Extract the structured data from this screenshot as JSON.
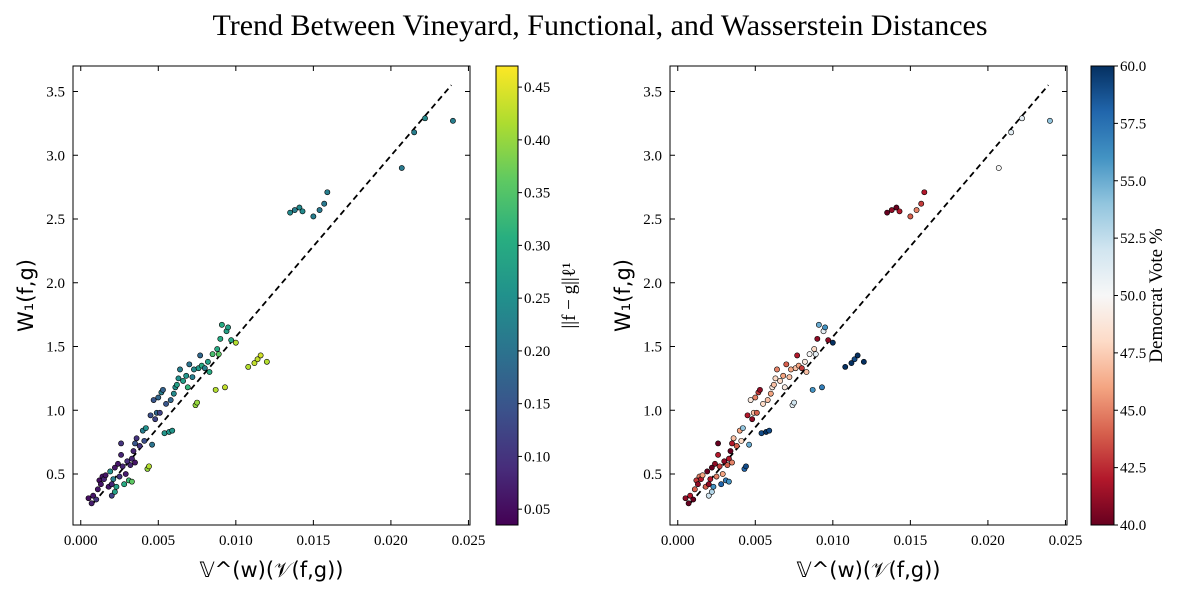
{
  "figure": {
    "title": "Trend Between Vineyard, Functional, and Wasserstein Distances"
  },
  "chart_data": [
    {
      "type": "scatter",
      "xlabel": "𝕍^(w)(𝒱(f,g))",
      "ylabel": "W₁(f,g)",
      "xlim": [
        -0.0005,
        0.0251
      ],
      "ylim": [
        0.1,
        3.7
      ],
      "xticks": [
        "0.000",
        "0.005",
        "0.010",
        "0.015",
        "0.020",
        "0.025"
      ],
      "yticks": [
        "0.5",
        "1.0",
        "1.5",
        "2.0",
        "2.5",
        "3.0",
        "3.5"
      ],
      "trend_line": {
        "x": [
          0.0008,
          0.0239
        ],
        "y": [
          0.27,
          3.55
        ],
        "style": "dashed",
        "color": "#000000"
      },
      "colorbar": {
        "label": "||f − g||ℓ¹",
        "colormap": "viridis",
        "range": [
          0.035,
          0.47
        ],
        "ticks": [
          "0.05",
          "0.10",
          "0.15",
          "0.20",
          "0.25",
          "0.30",
          "0.35",
          "0.40",
          "0.45"
        ]
      },
      "columns": [
        "x",
        "y",
        "color_value"
      ],
      "points": [
        [
          0.0005,
          0.31,
          0.05
        ],
        [
          0.0007,
          0.27,
          0.07
        ],
        [
          0.0008,
          0.33,
          0.06
        ],
        [
          0.001,
          0.3,
          0.1
        ],
        [
          0.0011,
          0.38,
          0.06
        ],
        [
          0.0012,
          0.45,
          0.05
        ],
        [
          0.0013,
          0.42,
          0.06
        ],
        [
          0.0014,
          0.48,
          0.06
        ],
        [
          0.0015,
          0.46,
          0.08
        ],
        [
          0.0016,
          0.49,
          0.06
        ],
        [
          0.0018,
          0.4,
          0.06
        ],
        [
          0.0019,
          0.52,
          0.25
        ],
        [
          0.002,
          0.42,
          0.08
        ],
        [
          0.002,
          0.33,
          0.12
        ],
        [
          0.0021,
          0.46,
          0.22
        ],
        [
          0.0022,
          0.55,
          0.06
        ],
        [
          0.0022,
          0.36,
          0.28
        ],
        [
          0.0023,
          0.4,
          0.28
        ],
        [
          0.0024,
          0.58,
          0.06
        ],
        [
          0.0025,
          0.48,
          0.1
        ],
        [
          0.0026,
          0.65,
          0.08
        ],
        [
          0.0026,
          0.74,
          0.1
        ],
        [
          0.0027,
          0.56,
          0.08
        ],
        [
          0.0028,
          0.42,
          0.3
        ],
        [
          0.0029,
          0.5,
          0.07
        ],
        [
          0.003,
          0.6,
          0.09
        ],
        [
          0.0031,
          0.45,
          0.33
        ],
        [
          0.0032,
          0.57,
          0.08
        ],
        [
          0.0033,
          0.62,
          0.08
        ],
        [
          0.0033,
          0.44,
          0.36
        ],
        [
          0.0034,
          0.68,
          0.08
        ],
        [
          0.0035,
          0.74,
          0.15
        ],
        [
          0.0035,
          0.59,
          0.06
        ],
        [
          0.0036,
          0.78,
          0.1
        ],
        [
          0.0038,
          0.72,
          0.1
        ],
        [
          0.004,
          0.84,
          0.22
        ],
        [
          0.0041,
          0.76,
          0.14
        ],
        [
          0.0042,
          0.86,
          0.25
        ],
        [
          0.0043,
          0.54,
          0.4
        ],
        [
          0.0044,
          0.56,
          0.42
        ],
        [
          0.0045,
          0.96,
          0.14
        ],
        [
          0.0046,
          0.73,
          0.2
        ],
        [
          0.0047,
          1.08,
          0.15
        ],
        [
          0.0048,
          0.93,
          0.12
        ],
        [
          0.0049,
          0.98,
          0.18
        ],
        [
          0.005,
          1.1,
          0.18
        ],
        [
          0.0051,
          0.98,
          0.12
        ],
        [
          0.0052,
          1.14,
          0.22
        ],
        [
          0.0053,
          1.16,
          0.17
        ],
        [
          0.0054,
          0.82,
          0.26
        ],
        [
          0.0055,
          1.05,
          0.15
        ],
        [
          0.0057,
          0.83,
          0.26
        ],
        [
          0.0058,
          1.08,
          0.18
        ],
        [
          0.0059,
          0.84,
          0.26
        ],
        [
          0.006,
          1.13,
          0.24
        ],
        [
          0.0061,
          1.18,
          0.25
        ],
        [
          0.0062,
          1.2,
          0.28
        ],
        [
          0.0063,
          1.25,
          0.25
        ],
        [
          0.0064,
          1.32,
          0.22
        ],
        [
          0.0066,
          1.23,
          0.28
        ],
        [
          0.0068,
          1.27,
          0.26
        ],
        [
          0.0069,
          1.18,
          0.32
        ],
        [
          0.007,
          1.36,
          0.2
        ],
        [
          0.0072,
          1.26,
          0.22
        ],
        [
          0.0073,
          1.32,
          0.24
        ],
        [
          0.0074,
          1.04,
          0.4
        ],
        [
          0.0075,
          1.06,
          0.4
        ],
        [
          0.0076,
          1.33,
          0.27
        ],
        [
          0.0077,
          1.43,
          0.18
        ],
        [
          0.0078,
          1.35,
          0.3
        ],
        [
          0.008,
          1.33,
          0.22
        ],
        [
          0.0082,
          1.38,
          0.28
        ],
        [
          0.0083,
          1.3,
          0.3
        ],
        [
          0.0085,
          1.44,
          0.34
        ],
        [
          0.0087,
          1.16,
          0.42
        ],
        [
          0.0088,
          1.48,
          0.3
        ],
        [
          0.0089,
          1.44,
          0.36
        ],
        [
          0.009,
          1.56,
          0.3
        ],
        [
          0.0091,
          1.67,
          0.3
        ],
        [
          0.0093,
          1.18,
          0.43
        ],
        [
          0.0094,
          1.62,
          0.28
        ],
        [
          0.0095,
          1.65,
          0.28
        ],
        [
          0.0097,
          1.55,
          0.3
        ],
        [
          0.01,
          1.53,
          0.42
        ],
        [
          0.0108,
          1.34,
          0.42
        ],
        [
          0.0112,
          1.37,
          0.43
        ],
        [
          0.0114,
          1.4,
          0.43
        ],
        [
          0.0116,
          1.43,
          0.44
        ],
        [
          0.012,
          1.38,
          0.42
        ],
        [
          0.0135,
          2.55,
          0.24
        ],
        [
          0.0138,
          2.57,
          0.22
        ],
        [
          0.0141,
          2.59,
          0.24
        ],
        [
          0.0143,
          2.56,
          0.24
        ],
        [
          0.015,
          2.52,
          0.22
        ],
        [
          0.0154,
          2.57,
          0.21
        ],
        [
          0.0157,
          2.62,
          0.21
        ],
        [
          0.0159,
          2.71,
          0.22
        ],
        [
          0.0207,
          2.9,
          0.21
        ],
        [
          0.0215,
          3.18,
          0.22
        ],
        [
          0.0222,
          3.29,
          0.24
        ],
        [
          0.024,
          3.27,
          0.22
        ]
      ]
    },
    {
      "type": "scatter",
      "xlabel": "𝕍^(w)(𝒱(f,g))",
      "ylabel": "W₁(f,g)",
      "xlim": [
        -0.0005,
        0.0251
      ],
      "ylim": [
        0.1,
        3.7
      ],
      "xticks": [
        "0.000",
        "0.005",
        "0.010",
        "0.015",
        "0.020",
        "0.025"
      ],
      "yticks": [
        "0.5",
        "1.0",
        "1.5",
        "2.0",
        "2.5",
        "3.0",
        "3.5"
      ],
      "trend_line": {
        "x": [
          0.0008,
          0.0239
        ],
        "y": [
          0.27,
          3.55
        ],
        "style": "dashed",
        "color": "#000000"
      },
      "colorbar": {
        "label": "Democrat Vote %",
        "colormap": "RdBu",
        "range": [
          40.0,
          60.0
        ],
        "ticks": [
          "40.0",
          "42.5",
          "45.0",
          "47.5",
          "50.0",
          "52.5",
          "55.0",
          "57.5",
          "60.0"
        ]
      },
      "columns": [
        "x",
        "y",
        "color_value"
      ],
      "points": [
        [
          0.0005,
          0.31,
          41
        ],
        [
          0.0007,
          0.27,
          40
        ],
        [
          0.0008,
          0.33,
          42
        ],
        [
          0.001,
          0.3,
          40
        ],
        [
          0.0011,
          0.38,
          44
        ],
        [
          0.0012,
          0.45,
          43
        ],
        [
          0.0013,
          0.42,
          41
        ],
        [
          0.0014,
          0.48,
          45
        ],
        [
          0.0015,
          0.46,
          42
        ],
        [
          0.0016,
          0.49,
          46
        ],
        [
          0.0018,
          0.4,
          44
        ],
        [
          0.0019,
          0.52,
          40
        ],
        [
          0.002,
          0.42,
          41
        ],
        [
          0.002,
          0.33,
          52
        ],
        [
          0.0021,
          0.46,
          42
        ],
        [
          0.0022,
          0.55,
          40
        ],
        [
          0.0022,
          0.36,
          53
        ],
        [
          0.0023,
          0.4,
          56
        ],
        [
          0.0024,
          0.58,
          41
        ],
        [
          0.0025,
          0.48,
          45
        ],
        [
          0.0026,
          0.65,
          42
        ],
        [
          0.0026,
          0.74,
          40
        ],
        [
          0.0027,
          0.56,
          43
        ],
        [
          0.0028,
          0.42,
          58
        ],
        [
          0.0029,
          0.5,
          46
        ],
        [
          0.003,
          0.6,
          41
        ],
        [
          0.0031,
          0.45,
          57
        ],
        [
          0.0032,
          0.57,
          44
        ],
        [
          0.0033,
          0.62,
          42
        ],
        [
          0.0033,
          0.44,
          56
        ],
        [
          0.0034,
          0.68,
          40
        ],
        [
          0.0035,
          0.74,
          42
        ],
        [
          0.0035,
          0.59,
          45
        ],
        [
          0.0036,
          0.78,
          47
        ],
        [
          0.0038,
          0.72,
          44
        ],
        [
          0.004,
          0.84,
          46
        ],
        [
          0.0041,
          0.76,
          48
        ],
        [
          0.0042,
          0.86,
          54
        ],
        [
          0.0043,
          0.54,
          58
        ],
        [
          0.0044,
          0.56,
          59
        ],
        [
          0.0045,
          0.96,
          42
        ],
        [
          0.0046,
          0.73,
          55
        ],
        [
          0.0047,
          1.08,
          49
        ],
        [
          0.0048,
          0.93,
          41
        ],
        [
          0.0049,
          0.98,
          47
        ],
        [
          0.005,
          1.1,
          45
        ],
        [
          0.0051,
          0.98,
          44
        ],
        [
          0.0052,
          1.14,
          43
        ],
        [
          0.0053,
          1.16,
          41
        ],
        [
          0.0054,
          0.82,
          59
        ],
        [
          0.0055,
          1.05,
          48
        ],
        [
          0.0057,
          0.83,
          60
        ],
        [
          0.0058,
          1.08,
          47
        ],
        [
          0.0059,
          0.84,
          59
        ],
        [
          0.006,
          1.13,
          46
        ],
        [
          0.0061,
          1.18,
          49
        ],
        [
          0.0062,
          1.2,
          47
        ],
        [
          0.0063,
          1.25,
          48
        ],
        [
          0.0064,
          1.32,
          45
        ],
        [
          0.0066,
          1.23,
          48
        ],
        [
          0.0068,
          1.27,
          46
        ],
        [
          0.0069,
          1.18,
          49
        ],
        [
          0.007,
          1.36,
          44
        ],
        [
          0.0072,
          1.26,
          47
        ],
        [
          0.0073,
          1.32,
          46
        ],
        [
          0.0074,
          1.04,
          51
        ],
        [
          0.0075,
          1.06,
          52
        ],
        [
          0.0076,
          1.33,
          47
        ],
        [
          0.0077,
          1.43,
          42
        ],
        [
          0.0078,
          1.35,
          46
        ],
        [
          0.008,
          1.33,
          43
        ],
        [
          0.0082,
          1.38,
          49
        ],
        [
          0.0083,
          1.3,
          47
        ],
        [
          0.0085,
          1.44,
          50
        ],
        [
          0.0087,
          1.16,
          56
        ],
        [
          0.0088,
          1.48,
          48
        ],
        [
          0.0089,
          1.44,
          51
        ],
        [
          0.009,
          1.56,
          41
        ],
        [
          0.0091,
          1.67,
          55
        ],
        [
          0.0093,
          1.18,
          57
        ],
        [
          0.0094,
          1.62,
          51
        ],
        [
          0.0095,
          1.65,
          56
        ],
        [
          0.0097,
          1.55,
          41
        ],
        [
          0.01,
          1.53,
          60
        ],
        [
          0.0108,
          1.34,
          60
        ],
        [
          0.0112,
          1.37,
          60
        ],
        [
          0.0114,
          1.4,
          59
        ],
        [
          0.0116,
          1.43,
          60
        ],
        [
          0.012,
          1.38,
          60
        ],
        [
          0.0135,
          2.55,
          40
        ],
        [
          0.0138,
          2.57,
          41
        ],
        [
          0.0141,
          2.59,
          40
        ],
        [
          0.0143,
          2.56,
          42
        ],
        [
          0.015,
          2.52,
          44
        ],
        [
          0.0154,
          2.57,
          45
        ],
        [
          0.0157,
          2.62,
          43
        ],
        [
          0.0159,
          2.71,
          42
        ],
        [
          0.0207,
          2.9,
          50
        ],
        [
          0.0215,
          3.18,
          51
        ],
        [
          0.0222,
          3.29,
          51
        ],
        [
          0.024,
          3.27,
          54
        ]
      ]
    }
  ]
}
